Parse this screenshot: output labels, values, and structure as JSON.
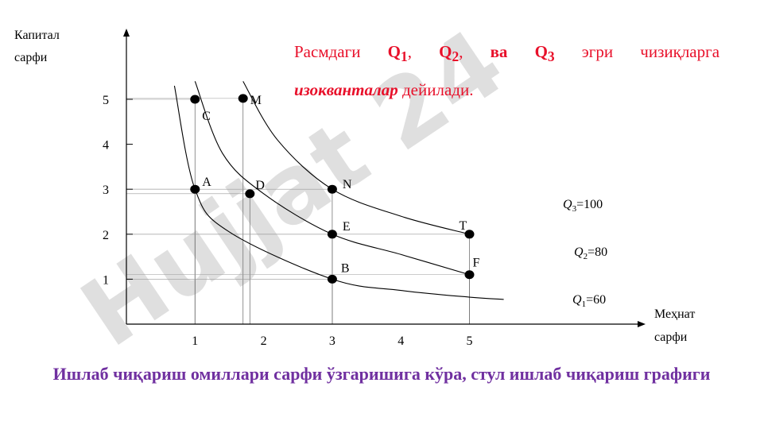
{
  "note": {
    "part1": "Расмдаги",
    "q1": "Q",
    "q1_sub": "1",
    "q2": "Q",
    "q2_sub": "2",
    "va": "ва",
    "q3": "Q",
    "q3_sub": "3",
    "part2": "эгри чизиқларга",
    "term": "изокванталар",
    "part3": "дейилади."
  },
  "caption": "Ишлаб чиқариш омиллари сарфи ўзгаришига кўра, стул ишлаб чиқариш графиги",
  "watermark": "Hujjat 24",
  "colors": {
    "note_text": "#e8102a",
    "caption_text": "#7030a0",
    "watermark": "#c4c4c4",
    "watermark_accent": "#cfc4f2",
    "points": "#000000"
  },
  "chart_data": {
    "type": "line",
    "ylabel_line1": "Капитал",
    "ylabel_line2": "сарфи",
    "xlabel_line1": "Меҳнат",
    "xlabel_line2": "сарфи",
    "xlim": [
      0,
      5.9
    ],
    "ylim": [
      0,
      5.9
    ],
    "x_ticks": [
      1,
      2,
      3,
      4,
      5
    ],
    "y_ticks": [
      1,
      2,
      3,
      4,
      5
    ],
    "series": [
      {
        "name": "Q",
        "sub": "1",
        "value_label": "=60",
        "points": [
          [
            0.7,
            5.3
          ],
          [
            1,
            3
          ],
          [
            1.5,
            2.05
          ],
          [
            3,
            1
          ],
          [
            4,
            0.75
          ],
          [
            5,
            0.6
          ],
          [
            5.5,
            0.55
          ]
        ]
      },
      {
        "name": "Q",
        "sub": "2",
        "value_label": "=80",
        "points": [
          [
            1,
            5.4
          ],
          [
            1.4,
            3.8
          ],
          [
            2,
            2.9
          ],
          [
            3,
            2
          ],
          [
            4,
            1.55
          ],
          [
            5,
            1.1
          ]
        ]
      },
      {
        "name": "Q",
        "sub": "3",
        "value_label": "=100",
        "points": [
          [
            1.7,
            5.4
          ],
          [
            2.2,
            4.1
          ],
          [
            3,
            3
          ],
          [
            4,
            2.4
          ],
          [
            5,
            2
          ]
        ]
      }
    ],
    "labeled_points": [
      {
        "label": "M",
        "x": 1.7,
        "y": 5.02
      },
      {
        "label": "C",
        "x": 1,
        "y": 5
      },
      {
        "label": "A",
        "x": 1,
        "y": 3
      },
      {
        "label": "D",
        "x": 1.8,
        "y": 2.9
      },
      {
        "label": "N",
        "x": 3,
        "y": 3
      },
      {
        "label": "E",
        "x": 3,
        "y": 2
      },
      {
        "label": "T",
        "x": 5,
        "y": 2
      },
      {
        "label": "B",
        "x": 3,
        "y": 1
      },
      {
        "label": "F",
        "x": 5,
        "y": 1.1
      }
    ]
  }
}
